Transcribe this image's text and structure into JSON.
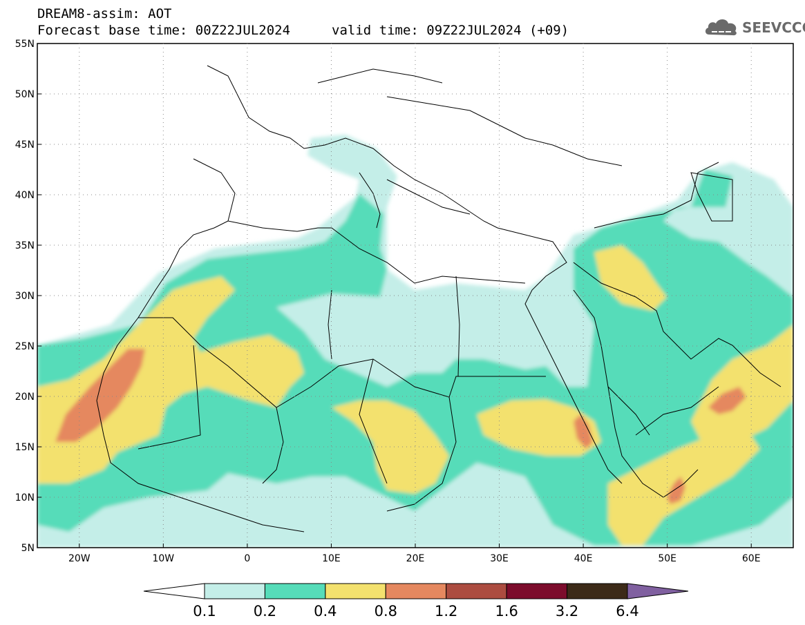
{
  "header": {
    "title": "DREAM8-assim: AOT",
    "base_time": "Forecast base time: 00Z22JUL2024",
    "valid_time": "valid time: 09Z22JUL2024 (+09)"
  },
  "logo": {
    "text": "SEEVCCC",
    "icon": "cloud-icon"
  },
  "map": {
    "lat_labels": [
      "55N",
      "50N",
      "45N",
      "40N",
      "35N",
      "30N",
      "25N",
      "20N",
      "15N",
      "10N",
      "5N"
    ],
    "lon_labels": [
      "20W",
      "10W",
      "0",
      "10E",
      "20E",
      "30E",
      "40E",
      "50E",
      "60E"
    ],
    "grid": "dotted"
  },
  "colorbar": {
    "levels": [
      "0.1",
      "0.2",
      "0.4",
      "0.8",
      "1.2",
      "1.6",
      "3.2",
      "6.4"
    ],
    "colors": [
      "#ffffff",
      "#c4eee8",
      "#56dcb9",
      "#f3e16e",
      "#e5885f",
      "#ac4c40",
      "#7c0c2c",
      "#3c2a18",
      "#8060a0"
    ]
  }
}
